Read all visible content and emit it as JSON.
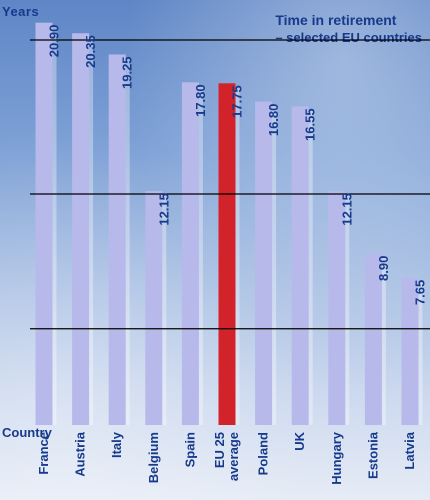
{
  "chart_data": {
    "type": "bar",
    "title": "Time in retirement",
    "subtitle": "– selected EU countries",
    "ylabel": "Years",
    "xlabel": "Country",
    "ylim": [
      0,
      24
    ],
    "categories": [
      "France",
      "Austria",
      "Italy",
      "Belgium",
      "Spain",
      "EU 25 average",
      "Poland",
      "UK",
      "Hungary",
      "Estonia",
      "Latvia"
    ],
    "category_lines": [
      [
        "France"
      ],
      [
        "Austria"
      ],
      [
        "Italy"
      ],
      [
        "Belgium"
      ],
      [
        "Spain"
      ],
      [
        "EU 25",
        "average"
      ],
      [
        "Poland"
      ],
      [
        "UK"
      ],
      [
        "Hungary"
      ],
      [
        "Estonia"
      ],
      [
        "Latvia"
      ]
    ],
    "values": [
      20.9,
      20.35,
      19.25,
      12.15,
      17.8,
      17.75,
      16.8,
      16.55,
      12.15,
      8.9,
      7.65
    ],
    "value_labels": [
      "20.90",
      "20.35",
      "19.25",
      "12.15",
      "17.80",
      "17.75",
      "16.80",
      "16.55",
      "12.15",
      "8.90",
      "7.65"
    ],
    "highlight": "EU 25 average",
    "colors": {
      "bar": "#b7b9ea",
      "highlight": "#d2232a",
      "text": "#173a8c",
      "gridline": "#000000"
    },
    "grid": true,
    "gridline_values": [
      20,
      12,
      5
    ]
  }
}
